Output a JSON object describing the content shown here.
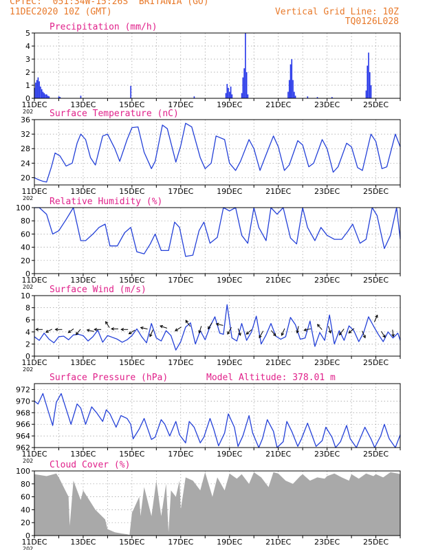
{
  "header": {
    "line1_left": "CPTEC:  051:34W-15:26S  BRITANIA (GO)",
    "line2_left": "11DEC2020 10Z (GMT)",
    "line2_right": "Vertical Grid Line: 10Z",
    "line3_right": "TQ0126L028"
  },
  "colors": {
    "header": "#e8792a",
    "title": "#e0208a",
    "line": "#2340d8",
    "bar": "#2334e8",
    "cloud": "#a9a9a9",
    "arrow": "#000000",
    "grid": "#9a9a9a"
  },
  "x_axis": {
    "start_day": 11,
    "end_day": 26,
    "tick_labels": [
      "11DEC",
      "13DEC",
      "15DEC",
      "17DEC",
      "19DEC",
      "21DEC",
      "23DEC",
      "25DEC"
    ],
    "corner_label": "202"
  },
  "chart_data": [
    {
      "id": "precipitation",
      "type": "bar",
      "title": "Precipitation (mm/h)",
      "ylim": [
        0,
        5
      ],
      "yticks": [
        0,
        1,
        2,
        3,
        4,
        5
      ],
      "grid": true,
      "bar_width_days": 0.04,
      "x": [
        11.0,
        11.05,
        11.1,
        11.15,
        11.2,
        11.25,
        11.3,
        11.35,
        11.4,
        11.45,
        11.5,
        11.55,
        11.6,
        12.0,
        12.05,
        12.9,
        14.95,
        17.55,
        18.85,
        18.9,
        18.95,
        19.0,
        19.05,
        19.1,
        19.5,
        19.55,
        19.6,
        19.65,
        19.7,
        19.75,
        21.4,
        21.45,
        21.5,
        21.55,
        21.6,
        21.65,
        21.7,
        22.2,
        22.6,
        23.2,
        24.6,
        24.65,
        24.7,
        24.75,
        24.8
      ],
      "values": [
        0.8,
        1.2,
        1.4,
        1.6,
        1.3,
        0.9,
        0.7,
        0.5,
        0.4,
        0.3,
        0.3,
        0.2,
        0.15,
        0.15,
        0.1,
        0.2,
        0.95,
        0.15,
        0.4,
        1.1,
        0.8,
        0.5,
        0.9,
        0.3,
        0.4,
        1.6,
        2.3,
        5.0,
        2.0,
        0.3,
        0.5,
        1.4,
        2.6,
        3.0,
        1.4,
        0.5,
        0.2,
        0.15,
        0.1,
        0.1,
        0.6,
        2.5,
        3.5,
        2.0,
        1.0
      ]
    },
    {
      "id": "surface-temperature",
      "type": "line",
      "title": "Surface Temperature (nC)",
      "ylim": [
        18,
        36
      ],
      "yticks": [
        20,
        24,
        28,
        32,
        36
      ],
      "grid": true,
      "x": [
        11.0,
        11.15,
        11.35,
        11.5,
        11.7,
        11.85,
        12.05,
        12.3,
        12.55,
        12.75,
        12.9,
        13.1,
        13.3,
        13.5,
        13.8,
        14.0,
        14.3,
        14.5,
        14.8,
        15.0,
        15.25,
        15.5,
        15.8,
        15.95,
        16.25,
        16.45,
        16.8,
        17.0,
        17.2,
        17.45,
        17.8,
        18.0,
        18.25,
        18.45,
        18.8,
        19.0,
        19.25,
        19.45,
        19.8,
        20.0,
        20.25,
        20.45,
        20.8,
        21.0,
        21.25,
        21.45,
        21.8,
        22.0,
        22.25,
        22.45,
        22.8,
        23.0,
        23.25,
        23.45,
        23.8,
        24.0,
        24.25,
        24.45,
        24.8,
        25.0,
        25.25,
        25.45,
        25.8,
        26.0
      ],
      "values": [
        20,
        19.5,
        19,
        18.8,
        23,
        26.8,
        26,
        23.2,
        24,
        29.5,
        32,
        30.5,
        25.5,
        23.5,
        31.5,
        32,
        28,
        24.5,
        30.5,
        33.8,
        34,
        27,
        22.5,
        24.5,
        34.5,
        33.5,
        24.3,
        28.8,
        35,
        34,
        25.5,
        22.5,
        24,
        31.5,
        30.5,
        24,
        22,
        24.5,
        30.5,
        28,
        22,
        25.5,
        31.5,
        28.5,
        22,
        23.5,
        30.2,
        29,
        23,
        24,
        30.5,
        28,
        21.5,
        23,
        29.5,
        28.5,
        22.8,
        22,
        32,
        30,
        22.5,
        23,
        32,
        28.5
      ]
    },
    {
      "id": "relative-humidity",
      "type": "line",
      "title": "Relative Humidity (%)",
      "ylim": [
        0,
        100
      ],
      "yticks": [
        0,
        20,
        40,
        60,
        80,
        100
      ],
      "grid": true,
      "x": [
        11.0,
        11.2,
        11.5,
        11.75,
        12.0,
        12.3,
        12.6,
        12.9,
        13.1,
        13.4,
        13.65,
        13.9,
        14.1,
        14.4,
        14.7,
        14.95,
        15.2,
        15.5,
        15.75,
        15.95,
        16.2,
        16.5,
        16.75,
        16.95,
        17.2,
        17.5,
        17.75,
        17.95,
        18.2,
        18.5,
        18.75,
        19.0,
        19.25,
        19.5,
        19.75,
        20.0,
        20.2,
        20.5,
        20.7,
        20.95,
        21.2,
        21.5,
        21.75,
        22.0,
        22.2,
        22.5,
        22.75,
        23.0,
        23.3,
        23.6,
        23.85,
        24.05,
        24.35,
        24.6,
        24.85,
        25.05,
        25.35,
        25.6,
        25.85,
        26.0
      ],
      "values": [
        100,
        100,
        90,
        60,
        65,
        82,
        100,
        50,
        50,
        60,
        70,
        75,
        42,
        42,
        62,
        70,
        33,
        30,
        45,
        60,
        35,
        35,
        78,
        70,
        26,
        28,
        65,
        78,
        46,
        55,
        100,
        95,
        100,
        58,
        46,
        100,
        70,
        50,
        100,
        90,
        100,
        54,
        45,
        100,
        70,
        50,
        70,
        58,
        52,
        52,
        64,
        75,
        46,
        52,
        100,
        88,
        38,
        58,
        100,
        52
      ],
      "y_extra": [
        [
          12.6,
          100
        ],
        [
          12.35,
          100
        ],
        [
          17.75,
          72
        ],
        [
          18.9,
          100
        ],
        [
          19.9,
          100
        ]
      ]
    },
    {
      "id": "surface-wind",
      "type": "line",
      "title": "Surface Wind (m/s)",
      "ylim": [
        0,
        10
      ],
      "yticks": [
        0,
        2,
        4,
        6,
        8,
        10
      ],
      "grid": true,
      "x": [
        11.0,
        11.2,
        11.4,
        11.6,
        11.8,
        12.0,
        12.2,
        12.4,
        12.6,
        12.8,
        13.0,
        13.2,
        13.4,
        13.6,
        13.8,
        14.0,
        14.2,
        14.4,
        14.6,
        14.8,
        15.0,
        15.2,
        15.4,
        15.6,
        15.8,
        16.0,
        16.2,
        16.4,
        16.6,
        16.8,
        17.0,
        17.2,
        17.4,
        17.6,
        17.8,
        18.0,
        18.2,
        18.4,
        18.6,
        18.75,
        18.9,
        19.1,
        19.3,
        19.5,
        19.7,
        19.9,
        20.1,
        20.3,
        20.5,
        20.7,
        20.9,
        21.1,
        21.3,
        21.5,
        21.7,
        21.9,
        22.1,
        22.3,
        22.5,
        22.7,
        22.9,
        23.1,
        23.3,
        23.5,
        23.7,
        23.9,
        24.1,
        24.3,
        24.5,
        24.7,
        24.9,
        25.1,
        25.3,
        25.5,
        25.7,
        25.9,
        26.0
      ],
      "values": [
        3.2,
        2.6,
        3.8,
        2.8,
        2.2,
        3.2,
        3.3,
        2.7,
        3.5,
        3.6,
        3.4,
        2.5,
        3.2,
        4.3,
        2.3,
        3.4,
        3.1,
        2.8,
        2.3,
        2.7,
        3.4,
        4.5,
        3.2,
        2.2,
        5.4,
        3.0,
        2.5,
        4.2,
        3.4,
        1.0,
        2.4,
        4.8,
        5.5,
        2.0,
        4.2,
        2.7,
        4.9,
        6.5,
        3.8,
        3.6,
        8.5,
        3.0,
        2.5,
        5.4,
        2.6,
        4.0,
        6.6,
        2.0,
        3.5,
        5.4,
        3.3,
        2.8,
        3.2,
        6.4,
        5.2,
        2.8,
        3.0,
        5.8,
        1.6,
        3.9,
        2.6,
        6.8,
        2.0,
        4.2,
        2.6,
        5.0,
        4.2,
        2.4,
        3.9,
        6.5,
        5.0,
        3.6,
        2.4,
        4.0,
        3.0,
        3.8,
        2.6
      ]
    },
    {
      "id": "surface-pressure",
      "type": "line",
      "title": "Surface Pressure (hPa)",
      "annotation": "Model Altitude: 378.01 m",
      "ylim": [
        962,
        973
      ],
      "yticks": [
        962,
        964,
        966,
        968,
        970,
        972
      ],
      "grid": true,
      "x": [
        11.0,
        11.15,
        11.35,
        11.55,
        11.75,
        11.9,
        12.1,
        12.35,
        12.5,
        12.75,
        12.9,
        13.1,
        13.35,
        13.55,
        13.8,
        13.95,
        14.1,
        14.35,
        14.55,
        14.8,
        14.95,
        15.05,
        15.3,
        15.5,
        15.8,
        15.95,
        16.2,
        16.35,
        16.55,
        16.8,
        16.95,
        17.2,
        17.35,
        17.55,
        17.8,
        17.95,
        18.2,
        18.35,
        18.55,
        18.8,
        18.95,
        19.2,
        19.35,
        19.55,
        19.8,
        19.95,
        20.2,
        20.35,
        20.55,
        20.8,
        20.95,
        21.2,
        21.35,
        21.55,
        21.8,
        21.95,
        22.2,
        22.35,
        22.55,
        22.8,
        22.95,
        23.2,
        23.35,
        23.55,
        23.8,
        23.95,
        24.2,
        24.35,
        24.55,
        24.8,
        24.95,
        25.2,
        25.35,
        25.55,
        25.8,
        26.0
      ],
      "values": [
        970,
        969.5,
        971.3,
        968.5,
        965.8,
        969.8,
        971.3,
        968,
        966,
        969.5,
        968.8,
        966,
        969,
        968,
        966.5,
        968.5,
        967.8,
        965.5,
        967.5,
        967,
        966,
        963.5,
        965.2,
        967,
        963.4,
        963.8,
        966.8,
        966,
        964,
        966.5,
        964.2,
        962.8,
        966.5,
        965.5,
        962.8,
        963.8,
        967,
        965.2,
        962.3,
        964.5,
        967.8,
        965.5,
        962.2,
        964,
        967.5,
        964.5,
        962,
        963.5,
        966.8,
        964.8,
        962,
        963,
        966.5,
        964.8,
        962.2,
        963.5,
        966.2,
        964.5,
        962.2,
        963.2,
        965.5,
        963.8,
        962,
        963,
        965.8,
        963.5,
        962,
        963.5,
        965.5,
        963.5,
        962,
        964,
        966,
        963.5,
        962,
        964.2
      ]
    },
    {
      "id": "cloud-cover",
      "type": "area",
      "title": "Cloud Cover (%)",
      "ylim": [
        0,
        100
      ],
      "yticks": [
        0,
        20,
        40,
        60,
        80,
        100
      ],
      "grid": true,
      "x": [
        11.0,
        11.5,
        11.9,
        12.0,
        12.4,
        12.45,
        12.6,
        12.9,
        13.0,
        13.5,
        13.9,
        14.0,
        14.3,
        14.6,
        14.8,
        14.9,
        15.0,
        15.3,
        15.35,
        15.5,
        15.8,
        16.0,
        16.2,
        16.4,
        16.5,
        16.6,
        16.8,
        16.95,
        17.0,
        17.2,
        17.5,
        17.8,
        18.0,
        18.3,
        18.5,
        18.8,
        19.0,
        19.3,
        19.5,
        19.8,
        20.0,
        20.3,
        20.6,
        20.8,
        21.0,
        21.3,
        21.6,
        21.9,
        22.0,
        22.3,
        22.6,
        22.9,
        23.0,
        23.3,
        23.6,
        23.9,
        24.0,
        24.3,
        24.6,
        24.9,
        25.0,
        25.3,
        25.6,
        25.9,
        26.0
      ],
      "values": [
        95,
        92,
        96,
        90,
        60,
        15,
        85,
        55,
        70,
        40,
        25,
        10,
        5,
        3,
        2,
        1,
        35,
        60,
        30,
        75,
        30,
        85,
        30,
        80,
        5,
        70,
        60,
        85,
        40,
        90,
        85,
        70,
        98,
        60,
        90,
        70,
        96,
        88,
        95,
        80,
        98,
        90,
        75,
        98,
        96,
        85,
        80,
        92,
        95,
        85,
        90,
        88,
        92,
        96,
        90,
        85,
        95,
        88,
        96,
        92,
        95,
        90,
        98,
        96,
        95
      ]
    }
  ]
}
